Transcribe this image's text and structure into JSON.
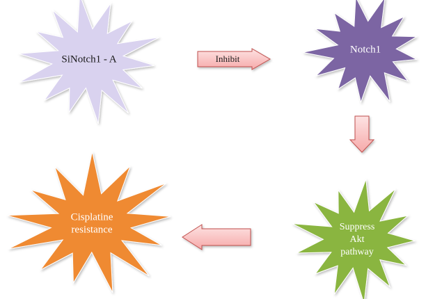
{
  "nodes": [
    {
      "id": "sinotch",
      "label_lines": [
        "SiNotch1 - A"
      ],
      "fill": "#d9d2ef",
      "text_color": "#1a1a1a"
    },
    {
      "id": "notch1",
      "label_lines": [
        "Notch1"
      ],
      "fill": "#7b65a3",
      "text_color": "#ffffff"
    },
    {
      "id": "akt",
      "label_lines": [
        "Suppress",
        "Akt",
        "pathway"
      ],
      "fill": "#8ab53f",
      "text_color": "#ffffff"
    },
    {
      "id": "cisplatin",
      "label_lines": [
        "Cisplatine",
        "resistance"
      ],
      "fill": "#ef8a33",
      "text_color": "#ffffff"
    }
  ],
  "edges": [
    {
      "from": "sinotch",
      "to": "notch1",
      "label": "Inhibit"
    },
    {
      "from": "notch1",
      "to": "akt",
      "label": ""
    },
    {
      "from": "akt",
      "to": "cisplatin",
      "label": ""
    }
  ],
  "colors": {
    "arrow_fill_top": "#fde3e3",
    "arrow_fill_bottom": "#f6a9a9",
    "arrow_stroke": "#c0504d"
  }
}
